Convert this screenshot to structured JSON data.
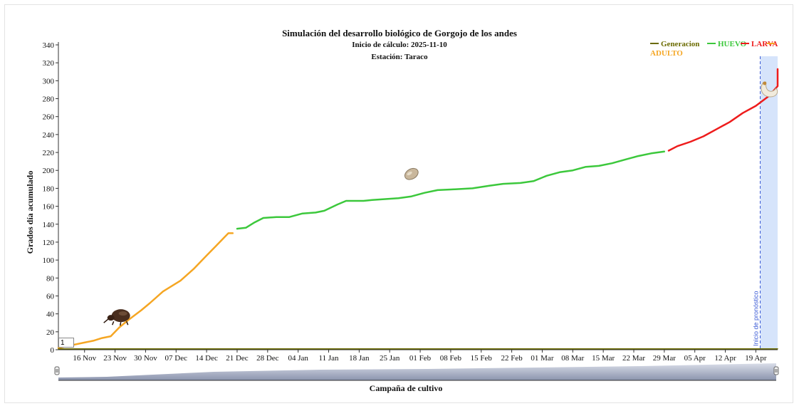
{
  "chart_data": {
    "type": "line",
    "title": "Simulación del desarrollo biológico de Gorgojo de los andes",
    "subtitle_1": "Inicio de cálculo: 2025-11-10",
    "subtitle_2": "Estación: Taraco",
    "xlabel": "Campaña de cultivo",
    "ylabel": "Grados día acumulado",
    "ylim": [
      0,
      340
    ],
    "yticks": [
      0,
      20,
      40,
      60,
      80,
      100,
      120,
      140,
      160,
      180,
      200,
      220,
      240,
      260,
      280,
      300,
      320,
      340
    ],
    "x_start": "2025-11-10",
    "x_end": "2026-04-24",
    "xticks": [
      {
        "date": "2025-11-16",
        "label": "16 Nov"
      },
      {
        "date": "2025-11-23",
        "label": "23 Nov"
      },
      {
        "date": "2025-11-30",
        "label": "30 Nov"
      },
      {
        "date": "2025-12-07",
        "label": "07 Dec"
      },
      {
        "date": "2025-12-14",
        "label": "14 Dec"
      },
      {
        "date": "2025-12-21",
        "label": "21 Dec"
      },
      {
        "date": "2025-12-28",
        "label": "28 Dec"
      },
      {
        "date": "2026-01-04",
        "label": "04 Jan"
      },
      {
        "date": "2026-01-11",
        "label": "11 Jan"
      },
      {
        "date": "2026-01-18",
        "label": "18 Jan"
      },
      {
        "date": "2026-01-25",
        "label": "25 Jan"
      },
      {
        "date": "2026-02-01",
        "label": "01 Feb"
      },
      {
        "date": "2026-02-08",
        "label": "08 Feb"
      },
      {
        "date": "2026-02-15",
        "label": "15 Feb"
      },
      {
        "date": "2026-02-22",
        "label": "22 Feb"
      },
      {
        "date": "2026-03-01",
        "label": "01 Mar"
      },
      {
        "date": "2026-03-08",
        "label": "08 Mar"
      },
      {
        "date": "2026-03-15",
        "label": "15 Mar"
      },
      {
        "date": "2026-03-22",
        "label": "22 Mar"
      },
      {
        "date": "2026-03-29",
        "label": "29 Mar"
      },
      {
        "date": "2026-04-05",
        "label": "05 Apr"
      },
      {
        "date": "2026-04-12",
        "label": "12 Apr"
      },
      {
        "date": "2026-04-19",
        "label": "19 Apr"
      }
    ],
    "forecast_start": "2026-04-20",
    "forecast_label": "Inicio de pronóstico",
    "legend_position": "top-right",
    "legend": [
      {
        "name": "Generacion",
        "color": "#6b6b00"
      },
      {
        "name": "HUEVO",
        "color": "#3cc83c"
      },
      {
        "name": "LARVA",
        "color": "#ee1c1c"
      },
      {
        "name": "ADULTO",
        "color": "#f5a623"
      }
    ],
    "series": [
      {
        "name": "ADULTO",
        "color": "#f5a623",
        "points": [
          [
            "2025-11-10",
            2
          ],
          [
            "2025-11-13",
            5
          ],
          [
            "2025-11-16",
            8
          ],
          [
            "2025-11-18",
            10
          ],
          [
            "2025-11-20",
            13
          ],
          [
            "2025-11-22",
            15
          ],
          [
            "2025-11-24",
            25
          ],
          [
            "2025-11-26",
            33
          ],
          [
            "2025-11-29",
            44
          ],
          [
            "2025-12-01",
            52
          ],
          [
            "2025-12-04",
            65
          ],
          [
            "2025-12-06",
            71
          ],
          [
            "2025-12-08",
            77
          ],
          [
            "2025-12-11",
            90
          ],
          [
            "2025-12-14",
            105
          ],
          [
            "2025-12-16",
            115
          ],
          [
            "2025-12-18",
            125
          ],
          [
            "2025-12-19",
            130
          ],
          [
            "2025-12-20",
            130
          ]
        ]
      },
      {
        "name": "HUEVO",
        "color": "#3cc83c",
        "points": [
          [
            "2025-12-21",
            135
          ],
          [
            "2025-12-23",
            136
          ],
          [
            "2025-12-25",
            142
          ],
          [
            "2025-12-27",
            147
          ],
          [
            "2025-12-30",
            148
          ],
          [
            "2026-01-02",
            148
          ],
          [
            "2026-01-05",
            152
          ],
          [
            "2026-01-08",
            153
          ],
          [
            "2026-01-10",
            155
          ],
          [
            "2026-01-13",
            162
          ],
          [
            "2026-01-15",
            166
          ],
          [
            "2026-01-19",
            166
          ],
          [
            "2026-01-21",
            167
          ],
          [
            "2026-01-24",
            168
          ],
          [
            "2026-01-27",
            169
          ],
          [
            "2026-01-30",
            171
          ],
          [
            "2026-02-02",
            175
          ],
          [
            "2026-02-05",
            178
          ],
          [
            "2026-02-09",
            179
          ],
          [
            "2026-02-13",
            180
          ],
          [
            "2026-02-17",
            183
          ],
          [
            "2026-02-20",
            185
          ],
          [
            "2026-02-24",
            186
          ],
          [
            "2026-02-27",
            188
          ],
          [
            "2026-03-02",
            194
          ],
          [
            "2026-03-05",
            198
          ],
          [
            "2026-03-08",
            200
          ],
          [
            "2026-03-11",
            204
          ],
          [
            "2026-03-14",
            205
          ],
          [
            "2026-03-17",
            208
          ],
          [
            "2026-03-20",
            212
          ],
          [
            "2026-03-23",
            216
          ],
          [
            "2026-03-26",
            219
          ],
          [
            "2026-03-29",
            221
          ]
        ]
      },
      {
        "name": "LARVA",
        "color": "#ee1c1c",
        "points": [
          [
            "2026-03-30",
            222
          ],
          [
            "2026-04-01",
            227
          ],
          [
            "2026-04-04",
            232
          ],
          [
            "2026-04-07",
            238
          ],
          [
            "2026-04-10",
            246
          ],
          [
            "2026-04-13",
            254
          ],
          [
            "2026-04-16",
            264
          ],
          [
            "2026-04-19",
            272
          ],
          [
            "2026-04-22",
            283
          ],
          [
            "2026-04-25",
            294
          ],
          [
            "2026-04-28",
            303
          ],
          [
            "2026-05-01",
            313
          ]
        ]
      },
      {
        "name": "Generacion",
        "color": "#6b6b00",
        "points": [
          [
            "2025-11-10",
            1
          ],
          [
            "2026-05-01",
            1
          ]
        ]
      }
    ],
    "icons": [
      {
        "name": "adulto-weevil-icon",
        "date": "2025-11-24",
        "value": 38
      },
      {
        "name": "huevo-egg-icon",
        "date": "2026-01-30",
        "value": 196
      },
      {
        "name": "larva-grub-icon",
        "date": "2026-04-22",
        "value": 290
      }
    ]
  },
  "navigator": {
    "input_value": "1"
  }
}
